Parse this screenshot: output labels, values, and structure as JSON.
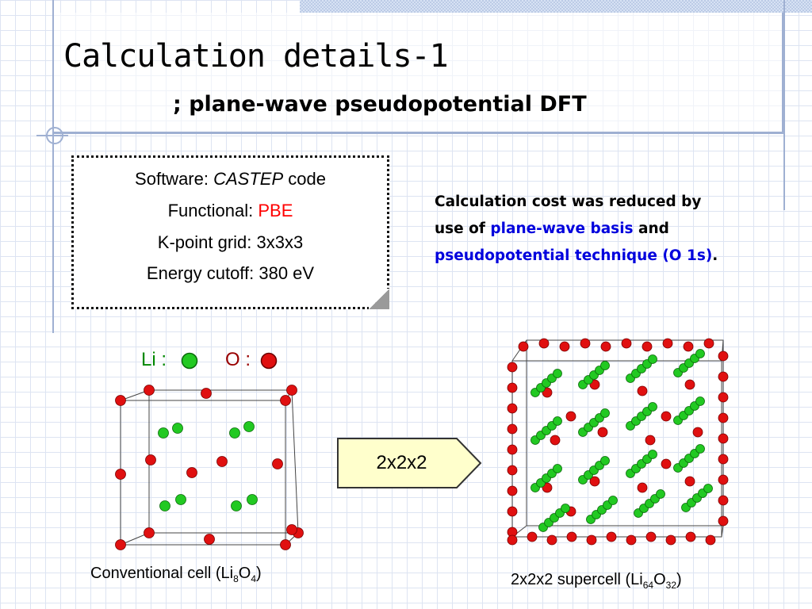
{
  "header": {
    "title": "Calculation details-1",
    "subtitle": "; plane-wave pseudopotential DFT"
  },
  "details": {
    "software_label": "Software: ",
    "software_value": "CASTEP",
    "software_suffix": " code",
    "functional_label": "Functional: ",
    "functional_value": "PBE",
    "kpoint": "K-point grid: 3x3x3",
    "cutoff": "Energy cutoff: 380 eV"
  },
  "note": {
    "line1": "Calculation cost was reduced by",
    "line2_prefix": "use of ",
    "line2_highlight": "plane-wave basis",
    "line2_suffix": " and",
    "line3_highlight": "pseudopotential technique (O 1s)",
    "line3_suffix": "."
  },
  "legend": {
    "li_label": "Li :",
    "o_label": "O :"
  },
  "arrow": {
    "label": "2x2x2"
  },
  "captions": {
    "conv_prefix": "Conventional cell (Li",
    "conv_sub1": "8",
    "conv_mid": "O",
    "conv_sub2": "4",
    "conv_suffix": ")",
    "super_prefix": "2x2x2 supercell (Li",
    "super_sub1": "64",
    "super_mid": "O",
    "super_sub2": "32",
    "super_suffix": ")"
  },
  "colors": {
    "li_atom": "#22c922",
    "o_atom": "#e01010",
    "accent_red": "#ff0000",
    "accent_blue": "#0000dd",
    "li_text": "#008800",
    "o_text": "#990000",
    "arrow_fill": "#ffffcc"
  }
}
